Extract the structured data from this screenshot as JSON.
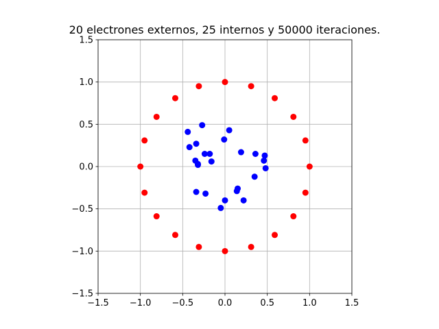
{
  "chart_data": {
    "type": "scatter",
    "title": "20 electrones externos, 25 internos y 50000 iteraciones.",
    "xlabel": "",
    "ylabel": "",
    "xlim": [
      -1.5,
      1.5
    ],
    "ylim": [
      -1.5,
      1.5
    ],
    "grid": true,
    "xticks": [
      -1.5,
      -1.0,
      -0.5,
      0.0,
      0.5,
      1.0,
      1.5
    ],
    "yticks": [
      -1.5,
      -1.0,
      -0.5,
      0.0,
      0.5,
      1.0,
      1.5
    ],
    "xtick_labels": [
      "−1.5",
      "−1.0",
      "−0.5",
      "0.0",
      "0.5",
      "1.0",
      "1.5"
    ],
    "ytick_labels": [
      "−1.5",
      "−1.0",
      "−0.5",
      "0.0",
      "0.5",
      "1.0",
      "1.5"
    ],
    "series": [
      {
        "color": "#ff0000",
        "points": [
          [
            1.0,
            0.0
          ],
          [
            0.951,
            0.309
          ],
          [
            0.809,
            0.588
          ],
          [
            0.588,
            0.809
          ],
          [
            0.309,
            0.951
          ],
          [
            0.0,
            1.0
          ],
          [
            -0.309,
            0.951
          ],
          [
            -0.588,
            0.809
          ],
          [
            -0.809,
            0.588
          ],
          [
            -0.951,
            0.309
          ],
          [
            -1.0,
            0.0
          ],
          [
            -0.951,
            -0.309
          ],
          [
            -0.809,
            -0.588
          ],
          [
            -0.588,
            -0.809
          ],
          [
            -0.309,
            -0.951
          ],
          [
            0.0,
            -1.0
          ],
          [
            0.309,
            -0.951
          ],
          [
            0.588,
            -0.809
          ],
          [
            0.809,
            -0.588
          ],
          [
            0.951,
            -0.309
          ]
        ]
      },
      {
        "color": "#0000ff",
        "points": [
          [
            -0.44,
            0.41
          ],
          [
            -0.27,
            0.49
          ],
          [
            0.05,
            0.43
          ],
          [
            -0.34,
            0.27
          ],
          [
            -0.42,
            0.23
          ],
          [
            -0.01,
            0.32
          ],
          [
            0.19,
            0.17
          ],
          [
            0.36,
            0.15
          ],
          [
            0.47,
            0.13
          ],
          [
            0.46,
            0.07
          ],
          [
            -0.24,
            0.15
          ],
          [
            -0.18,
            0.15
          ],
          [
            -0.35,
            0.07
          ],
          [
            -0.16,
            0.06
          ],
          [
            -0.32,
            0.03
          ],
          [
            0.48,
            -0.02
          ],
          [
            0.35,
            -0.12
          ],
          [
            -0.34,
            -0.3
          ],
          [
            -0.23,
            -0.32
          ],
          [
            0.15,
            -0.26
          ],
          [
            0.14,
            -0.29
          ],
          [
            0.0,
            -0.4
          ],
          [
            0.22,
            -0.4
          ],
          [
            -0.05,
            -0.49
          ],
          [
            -0.32,
            0.02
          ]
        ]
      }
    ]
  }
}
